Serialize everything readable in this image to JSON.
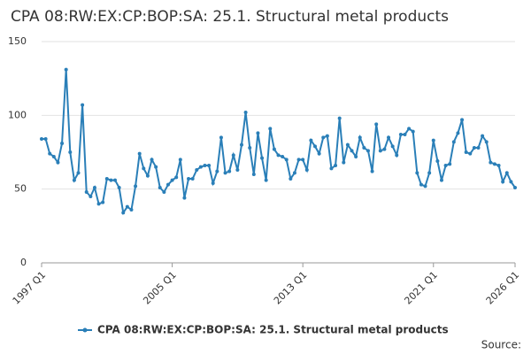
{
  "chart_data": {
    "type": "line",
    "title": "CPA 08:RW:EX:CP:BOP:SA: 25.1. Structural metal products",
    "categories": [
      "1997 Q1",
      null,
      null,
      null,
      null,
      null,
      null,
      null,
      null,
      null,
      null,
      null,
      null,
      null,
      null,
      null,
      null,
      null,
      null,
      null,
      null,
      null,
      null,
      null,
      null,
      null,
      null,
      null,
      null,
      null,
      null,
      null,
      "2005 Q1",
      null,
      null,
      null,
      null,
      null,
      null,
      null,
      null,
      null,
      null,
      null,
      null,
      null,
      null,
      null,
      null,
      null,
      null,
      null,
      null,
      null,
      null,
      null,
      null,
      null,
      null,
      null,
      null,
      null,
      null,
      null,
      "2013 Q1",
      null,
      null,
      null,
      null,
      null,
      null,
      null,
      null,
      null,
      null,
      null,
      null,
      null,
      null,
      null,
      null,
      null,
      null,
      null,
      null,
      null,
      null,
      null,
      null,
      null,
      null,
      null,
      null,
      null,
      null,
      null,
      "2021 Q1",
      null,
      null,
      null,
      null,
      null,
      null,
      null,
      null,
      null,
      null,
      null,
      null,
      null,
      null,
      null,
      null,
      null,
      null,
      null,
      "2026 Q1"
    ],
    "series": [
      {
        "name": "CPA 08:RW:EX:CP:BOP:SA: 25.1. Structural metal products",
        "color": "#2a7fb8",
        "values": [
          84,
          84,
          74,
          72,
          68,
          81,
          131,
          75,
          56,
          61,
          107,
          48,
          45,
          51,
          40,
          41,
          57,
          56,
          56,
          51,
          34,
          38,
          36,
          52,
          74,
          64,
          59,
          70,
          65,
          51,
          48,
          53,
          56,
          58,
          70,
          44,
          57,
          57,
          63,
          65,
          66,
          66,
          54,
          62,
          85,
          61,
          62,
          73,
          63,
          80,
          102,
          78,
          60,
          88,
          71,
          56,
          91,
          77,
          73,
          72,
          70,
          57,
          61,
          70,
          70,
          63,
          83,
          79,
          74,
          85,
          86,
          64,
          66,
          98,
          68,
          80,
          76,
          72,
          85,
          78,
          76,
          62,
          94,
          76,
          77,
          85,
          79,
          73,
          87,
          87,
          91,
          89,
          61,
          53,
          52,
          61,
          83,
          69,
          56,
          66,
          67,
          82,
          88,
          97,
          75,
          74,
          78,
          78,
          86,
          82,
          68,
          67,
          66,
          55,
          61,
          55,
          51
        ]
      }
    ],
    "ylim": [
      0,
      150
    ],
    "yticks": [
      0,
      50,
      100,
      150
    ],
    "grid": true,
    "source": "Source:"
  }
}
